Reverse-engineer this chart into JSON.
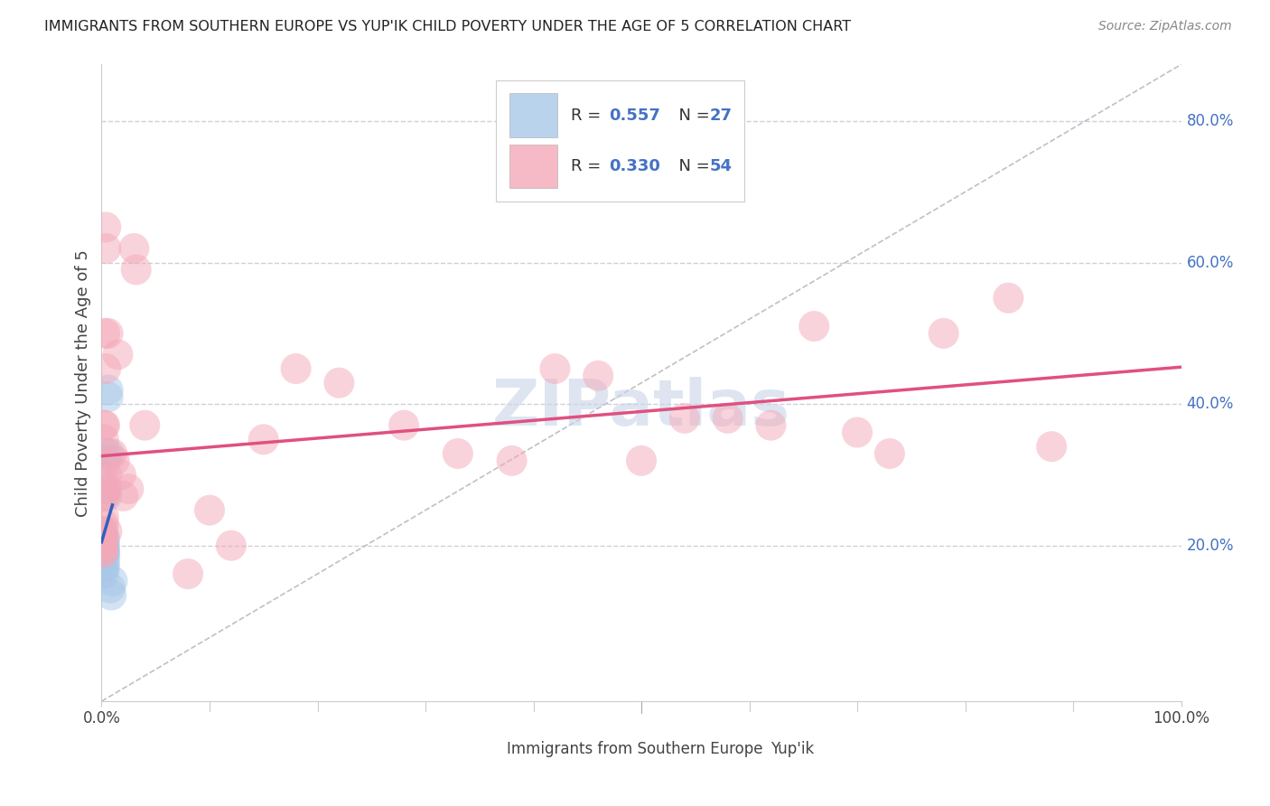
{
  "title": "IMMIGRANTS FROM SOUTHERN EUROPE VS YUP'IK CHILD POVERTY UNDER THE AGE OF 5 CORRELATION CHART",
  "source": "Source: ZipAtlas.com",
  "ylabel": "Child Poverty Under the Age of 5",
  "blue_R": 0.557,
  "blue_N": 27,
  "pink_R": 0.33,
  "pink_N": 54,
  "blue_color": "#a8c8e8",
  "pink_color": "#f4a8b8",
  "blue_line_color": "#3060c0",
  "pink_line_color": "#e05080",
  "blue_scatter": [
    [
      0.001,
      0.22
    ],
    [
      0.001,
      0.21
    ],
    [
      0.001,
      0.2
    ],
    [
      0.001,
      0.2
    ],
    [
      0.002,
      0.21
    ],
    [
      0.002,
      0.2
    ],
    [
      0.002,
      0.2
    ],
    [
      0.002,
      0.19
    ],
    [
      0.002,
      0.18
    ],
    [
      0.002,
      0.17
    ],
    [
      0.002,
      0.16
    ],
    [
      0.003,
      0.21
    ],
    [
      0.003,
      0.2
    ],
    [
      0.003,
      0.19
    ],
    [
      0.003,
      0.19
    ],
    [
      0.003,
      0.18
    ],
    [
      0.003,
      0.17
    ],
    [
      0.004,
      0.33
    ],
    [
      0.004,
      0.32
    ],
    [
      0.005,
      0.28
    ],
    [
      0.005,
      0.27
    ],
    [
      0.006,
      0.42
    ],
    [
      0.006,
      0.41
    ],
    [
      0.007,
      0.33
    ],
    [
      0.008,
      0.14
    ],
    [
      0.009,
      0.13
    ],
    [
      0.01,
      0.15
    ]
  ],
  "pink_scatter": [
    [
      0.001,
      0.22
    ],
    [
      0.001,
      0.21
    ],
    [
      0.001,
      0.21
    ],
    [
      0.001,
      0.2
    ],
    [
      0.001,
      0.2
    ],
    [
      0.001,
      0.2
    ],
    [
      0.001,
      0.19
    ],
    [
      0.001,
      0.19
    ],
    [
      0.002,
      0.37
    ],
    [
      0.002,
      0.35
    ],
    [
      0.002,
      0.29
    ],
    [
      0.002,
      0.27
    ],
    [
      0.002,
      0.24
    ],
    [
      0.002,
      0.23
    ],
    [
      0.003,
      0.5
    ],
    [
      0.003,
      0.37
    ],
    [
      0.003,
      0.28
    ],
    [
      0.003,
      0.27
    ],
    [
      0.004,
      0.65
    ],
    [
      0.004,
      0.62
    ],
    [
      0.004,
      0.45
    ],
    [
      0.005,
      0.3
    ],
    [
      0.005,
      0.22
    ],
    [
      0.006,
      0.5
    ],
    [
      0.01,
      0.33
    ],
    [
      0.012,
      0.32
    ],
    [
      0.015,
      0.47
    ],
    [
      0.018,
      0.3
    ],
    [
      0.02,
      0.27
    ],
    [
      0.025,
      0.28
    ],
    [
      0.03,
      0.62
    ],
    [
      0.032,
      0.59
    ],
    [
      0.04,
      0.37
    ],
    [
      0.08,
      0.16
    ],
    [
      0.1,
      0.25
    ],
    [
      0.12,
      0.2
    ],
    [
      0.15,
      0.35
    ],
    [
      0.18,
      0.45
    ],
    [
      0.22,
      0.43
    ],
    [
      0.28,
      0.37
    ],
    [
      0.33,
      0.33
    ],
    [
      0.38,
      0.32
    ],
    [
      0.42,
      0.45
    ],
    [
      0.46,
      0.44
    ],
    [
      0.5,
      0.32
    ],
    [
      0.54,
      0.38
    ],
    [
      0.58,
      0.38
    ],
    [
      0.62,
      0.37
    ],
    [
      0.66,
      0.51
    ],
    [
      0.7,
      0.36
    ],
    [
      0.73,
      0.33
    ],
    [
      0.78,
      0.5
    ],
    [
      0.84,
      0.55
    ],
    [
      0.88,
      0.34
    ]
  ],
  "xlim": [
    0.0,
    1.0
  ],
  "ylim": [
    -0.02,
    0.88
  ],
  "ytick_positions": [
    0.2,
    0.4,
    0.6,
    0.8
  ],
  "ytick_labels": [
    "20.0%",
    "40.0%",
    "60.0%",
    "80.0%"
  ],
  "xtick_positions": [
    0.0,
    1.0
  ],
  "xtick_labels": [
    "0.0%",
    "100.0%"
  ],
  "background_color": "#ffffff",
  "grid_color": "#d0d0d8",
  "ref_line_color": "#b0b0b8",
  "watermark_color": "#c8d4e8"
}
